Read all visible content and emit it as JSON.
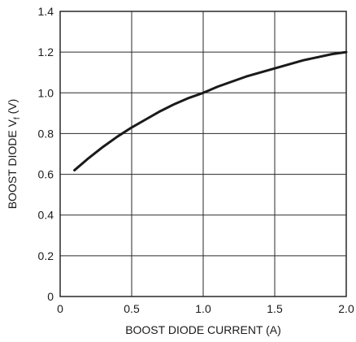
{
  "chart_data": {
    "type": "line",
    "title": "",
    "xlabel": "BOOST DIODE CURRENT (A)",
    "ylabel_main": "BOOST DIODE V",
    "ylabel_sub": "f",
    "ylabel_unit": " (V)",
    "xlim": [
      0,
      2.0
    ],
    "ylim": [
      0,
      1.4
    ],
    "grid": true,
    "x_ticks": [
      0,
      0.5,
      1.0,
      1.5,
      2.0
    ],
    "x_tick_labels": [
      "0",
      "0.5",
      "1.0",
      "1.5",
      "2.0"
    ],
    "y_ticks": [
      0,
      0.2,
      0.4,
      0.6,
      0.8,
      1.0,
      1.2,
      1.4
    ],
    "y_tick_labels": [
      "0",
      "0.2",
      "0.4",
      "0.6",
      "0.8",
      "1.0",
      "1.2",
      "1.4"
    ],
    "series": [
      {
        "x": [
          0.1,
          0.2,
          0.3,
          0.4,
          0.5,
          0.6,
          0.7,
          0.8,
          0.9,
          1.0,
          1.1,
          1.2,
          1.3,
          1.4,
          1.5,
          1.6,
          1.7,
          1.8,
          1.9,
          2.0
        ],
        "y": [
          0.62,
          0.68,
          0.735,
          0.785,
          0.83,
          0.87,
          0.91,
          0.945,
          0.975,
          1.0,
          1.03,
          1.055,
          1.08,
          1.1,
          1.12,
          1.14,
          1.16,
          1.175,
          1.19,
          1.2
        ]
      }
    ],
    "colors": {
      "line": "#1a1a1a",
      "grid": "#2a2a2a"
    }
  }
}
